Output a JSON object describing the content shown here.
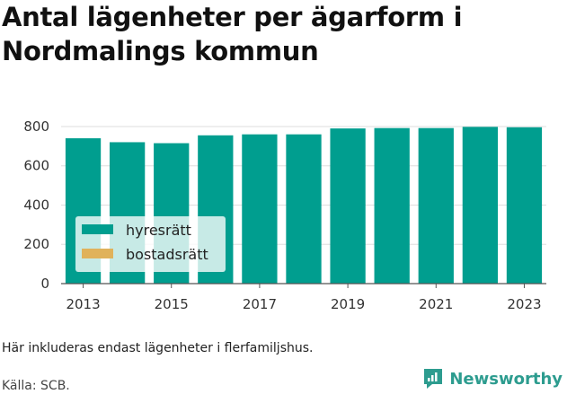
{
  "title": "Antal lägenheter per ägarform i Nordmalings kommun",
  "caption": "Här inkluderas endast lägenheter i flerfamiljshus.",
  "source": "Källa: SCB.",
  "brand": {
    "name": "Newsworthy",
    "icon": "newsworthy-logo-icon"
  },
  "colors": {
    "hyresratt": "#009e8f",
    "bostadsratt": "#e0b25b",
    "grid": "#dddddd"
  },
  "chart_data": {
    "type": "bar",
    "stacked": true,
    "categories": [
      "2013",
      "2014",
      "2015",
      "2016",
      "2017",
      "2018",
      "2019",
      "2020",
      "2021",
      "2022",
      "2023"
    ],
    "x_tick_labels": [
      "2013",
      "2015",
      "2017",
      "2019",
      "2021",
      "2023"
    ],
    "series": [
      {
        "name": "hyresrätt",
        "values": [
          740,
          720,
          715,
          755,
          760,
          760,
          790,
          792,
          792,
          798,
          796
        ]
      },
      {
        "name": "bostadsrätt",
        "values": [
          0,
          0,
          0,
          0,
          0,
          0,
          0,
          0,
          0,
          0,
          0
        ]
      }
    ],
    "y_ticks": [
      0,
      200,
      400,
      600,
      800
    ],
    "ylim": [
      0,
      850
    ],
    "grid": "horizontal",
    "legend_position": "bottom-left"
  }
}
